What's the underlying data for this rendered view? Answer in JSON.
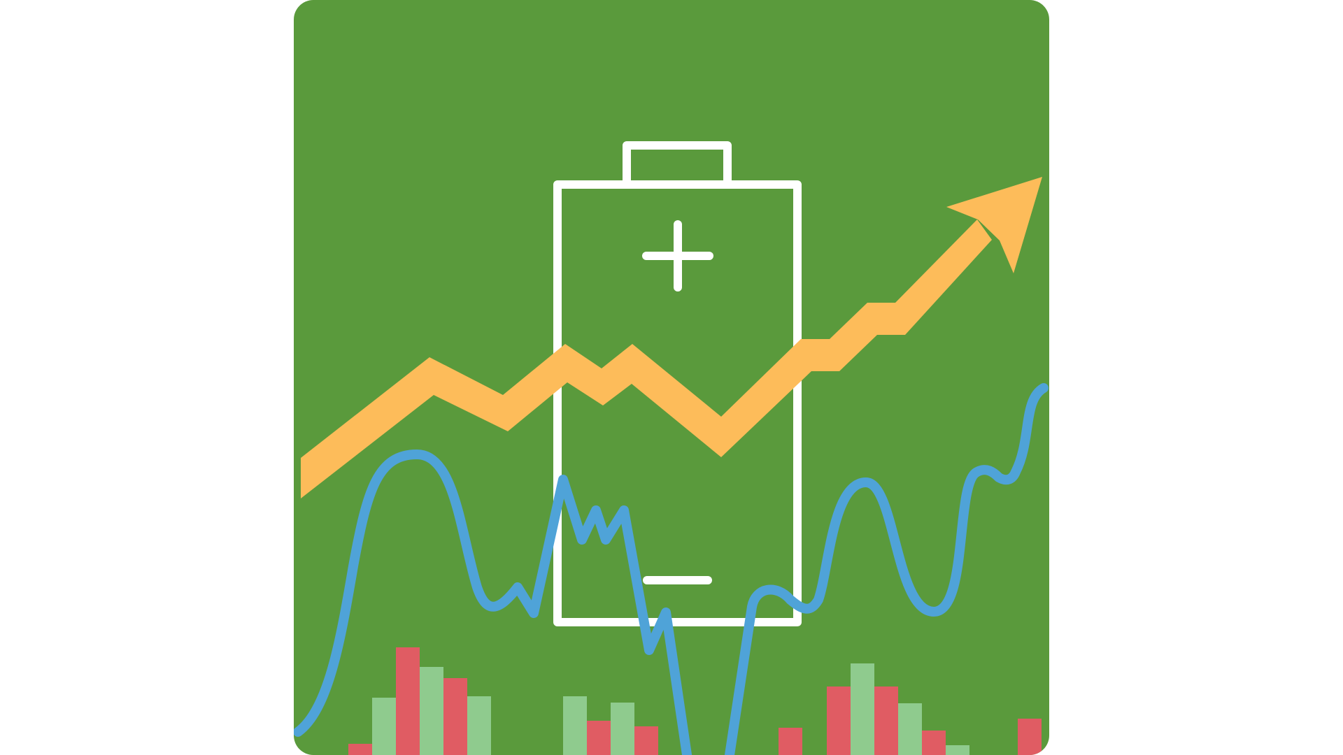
{
  "illustration": {
    "panel_color": "#5a9a3c",
    "arrow_color": "#fdbc5a",
    "wave_color": "#4fa3d8",
    "battery_color": "#ffffff",
    "bar_colors": {
      "up": "#8fcb8e",
      "down": "#e05c63"
    },
    "icons": [
      "battery-icon",
      "plus-icon",
      "minus-icon",
      "trend-arrow-icon"
    ]
  }
}
